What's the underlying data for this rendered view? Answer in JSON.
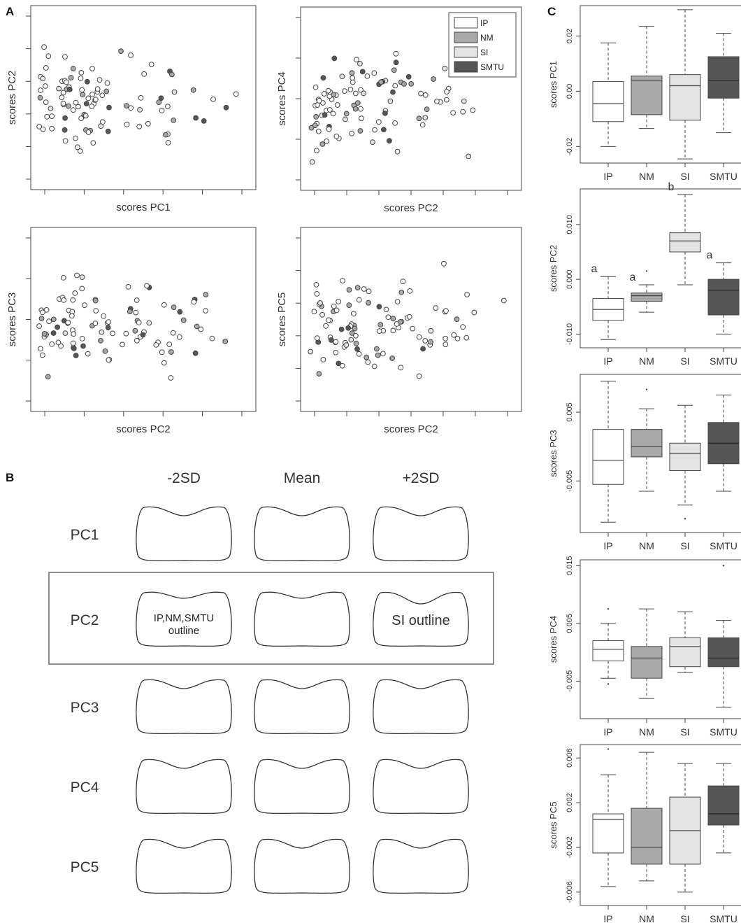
{
  "panels": {
    "A": "A",
    "B": "B",
    "C": "C"
  },
  "colors": {
    "IP": "#ffffff",
    "NM": "#a9a9a9",
    "SI": "#e4e4e4",
    "SMTU": "#555555",
    "stroke": "#333333"
  },
  "legend": [
    "IP",
    "NM",
    "SI",
    "SMTU"
  ],
  "panel_b": {
    "columns": [
      "-2SD",
      "Mean",
      "+2SD"
    ],
    "rows": [
      "PC1",
      "PC2",
      "PC3",
      "PC4",
      "PC5"
    ],
    "note_pc2_minus": [
      "IP,NM,SMTU",
      "outline"
    ],
    "note_pc2_plus": "SI outline"
  },
  "chart_data": [
    {
      "type": "scatter",
      "id": "A1",
      "xlabel": "scores PC1",
      "ylabel": "scores PC2",
      "n_points": 98
    },
    {
      "type": "scatter",
      "id": "A2",
      "xlabel": "scores  PC2",
      "ylabel": "scores  PC4",
      "n_points": 98
    },
    {
      "type": "scatter",
      "id": "A3",
      "xlabel": "scores  PC2",
      "ylabel": "scores  PC3",
      "n_points": 98
    },
    {
      "type": "scatter",
      "id": "A4",
      "xlabel": "scores  PC2",
      "ylabel": "scores  PC5",
      "n_points": 98
    },
    {
      "type": "box",
      "id": "C1",
      "ylabel": "scores PC1",
      "categories": [
        "IP",
        "NM",
        "SI",
        "SMTU"
      ],
      "yticks": [
        "-0.02",
        "0.00",
        "0.02"
      ],
      "ylim": [
        -0.026,
        0.031
      ],
      "boxes": [
        {
          "min": -0.02,
          "q1": -0.011,
          "median": -0.0045,
          "q3": 0.0035,
          "max": 0.0175
        },
        {
          "min": -0.0135,
          "q1": -0.0085,
          "median": 0.004,
          "q3": 0.0055,
          "max": 0.0235
        },
        {
          "min": -0.0245,
          "q1": -0.0105,
          "median": 0.002,
          "q3": 0.006,
          "max": 0.0295
        },
        {
          "min": -0.015,
          "q1": -0.0025,
          "median": 0.004,
          "q3": 0.0125,
          "max": 0.021
        }
      ],
      "outliers": [
        [],
        [],
        [],
        []
      ],
      "sig": [
        "",
        "",
        "",
        ""
      ]
    },
    {
      "type": "box",
      "id": "C2",
      "ylabel": "scores  PC2",
      "categories": [
        "IP",
        "NM",
        "SI",
        "SMTU"
      ],
      "yticks": [
        "-0.010",
        "0.000",
        "0.010"
      ],
      "ylim": [
        -0.0125,
        0.0165
      ],
      "boxes": [
        {
          "min": -0.011,
          "q1": -0.0075,
          "median": -0.0055,
          "q3": -0.0035,
          "max": 0.0005
        },
        {
          "min": -0.006,
          "q1": -0.004,
          "median": -0.003,
          "q3": -0.0025,
          "max": -0.001
        },
        {
          "min": -0.001,
          "q1": 0.005,
          "median": 0.007,
          "q3": 0.0085,
          "max": 0.0155
        },
        {
          "min": -0.01,
          "q1": -0.0065,
          "median": -0.002,
          "q3": 0.0,
          "max": 0.003
        }
      ],
      "outliers": [
        [],
        [
          0.0015
        ],
        [],
        []
      ],
      "sig": [
        "a",
        "a",
        "b",
        "a"
      ]
    },
    {
      "type": "box",
      "id": "C3",
      "ylabel": "scores  PC3",
      "categories": [
        "IP",
        "NM",
        "SI",
        "SMTU"
      ],
      "yticks": [
        "-0.005",
        "0.005"
      ],
      "ylim": [
        -0.0125,
        0.0105
      ],
      "boxes": [
        {
          "min": -0.011,
          "q1": -0.0055,
          "median": -0.002,
          "q3": 0.0025,
          "max": 0.0095
        },
        {
          "min": -0.0065,
          "q1": -0.0015,
          "median": 0.0,
          "q3": 0.0025,
          "max": 0.0055
        },
        {
          "min": -0.0085,
          "q1": -0.0035,
          "median": -0.001,
          "q3": 0.0005,
          "max": 0.006
        },
        {
          "min": -0.0065,
          "q1": -0.0025,
          "median": 0.0005,
          "q3": 0.0035,
          "max": 0.0075
        }
      ],
      "outliers": [
        [],
        [
          0.0083
        ],
        [
          -0.0105
        ],
        []
      ],
      "sig": [
        "",
        "",
        "",
        ""
      ]
    },
    {
      "type": "box",
      "id": "C4",
      "ylabel": "scores  PC4",
      "categories": [
        "IP",
        "NM",
        "SI",
        "SMTU"
      ],
      "yticks": [
        "-0.005",
        "0.005",
        "0.015"
      ],
      "ylim": [
        -0.0115,
        0.016
      ],
      "boxes": [
        {
          "min": -0.0045,
          "q1": -0.0015,
          "median": 0.0005,
          "q3": 0.002,
          "max": 0.005
        },
        {
          "min": -0.008,
          "q1": -0.0045,
          "median": -0.001,
          "q3": 0.001,
          "max": 0.0075
        },
        {
          "min": -0.0035,
          "q1": -0.0025,
          "median": 0.001,
          "q3": 0.0025,
          "max": 0.007
        },
        {
          "min": -0.0095,
          "q1": -0.0025,
          "median": -0.001,
          "q3": 0.0025,
          "max": 0.0055
        }
      ],
      "outliers": [
        [
          0.0075,
          -0.0055
        ],
        [],
        [],
        [
          0.015
        ]
      ],
      "sig": [
        "",
        "",
        "",
        ""
      ]
    },
    {
      "type": "box",
      "id": "C5",
      "ylabel": "scores  PC5",
      "categories": [
        "IP",
        "NM",
        "SI",
        "SMTU"
      ],
      "yticks": [
        "-0.006",
        "-0.002",
        "0.002",
        "0.006"
      ],
      "ylim": [
        -0.0072,
        0.0072
      ],
      "boxes": [
        {
          "min": -0.0055,
          "q1": -0.0025,
          "median": 0.0005,
          "q3": 0.001,
          "max": 0.0045
        },
        {
          "min": -0.005,
          "q1": -0.0035,
          "median": -0.002,
          "q3": 0.0015,
          "max": 0.0065
        },
        {
          "min": -0.006,
          "q1": -0.0035,
          "median": -0.0005,
          "q3": 0.0025,
          "max": 0.0055
        },
        {
          "min": -0.0025,
          "q1": 0.0,
          "median": 0.001,
          "q3": 0.0035,
          "max": 0.0055
        }
      ],
      "outliers": [
        [
          0.0068
        ],
        [],
        [],
        []
      ],
      "sig": [
        "",
        "",
        "",
        ""
      ]
    }
  ]
}
